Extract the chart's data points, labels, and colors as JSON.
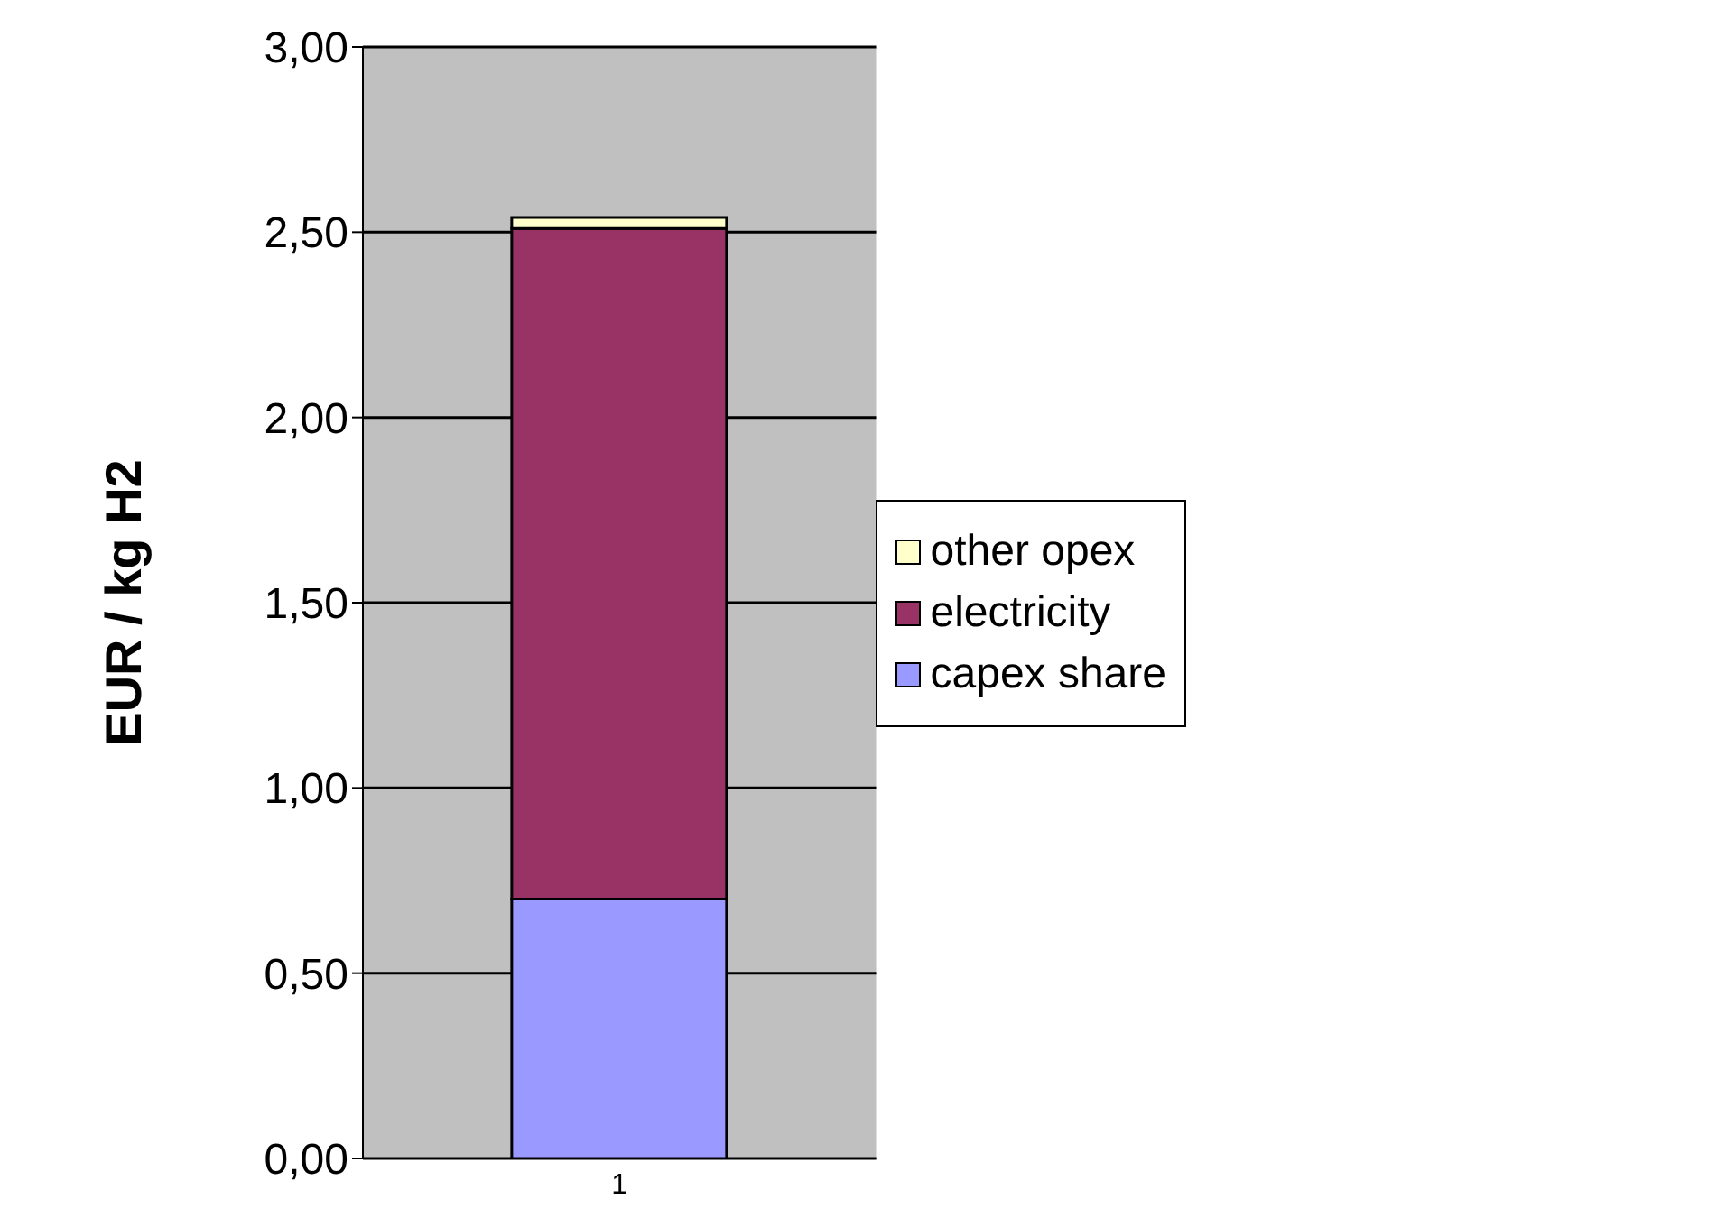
{
  "chart_data": {
    "type": "bar",
    "stacked": true,
    "ylabel": "EUR  / kg H2",
    "categories": [
      "1"
    ],
    "series": [
      {
        "name": "capex share",
        "color": "#9999ff",
        "values": [
          0.7
        ]
      },
      {
        "name": "electricity",
        "color": "#993366",
        "values": [
          1.81
        ]
      },
      {
        "name": "other opex",
        "color": "#ffffcc",
        "values": [
          0.03
        ]
      }
    ],
    "ylim": [
      0,
      3
    ],
    "yticks": [
      {
        "value": 0,
        "label": "0,00"
      },
      {
        "value": 0.5,
        "label": "0,50"
      },
      {
        "value": 1,
        "label": "1,00"
      },
      {
        "value": 1.5,
        "label": "1,50"
      },
      {
        "value": 2,
        "label": "2,00"
      },
      {
        "value": 2.5,
        "label": "2,50"
      },
      {
        "value": 3,
        "label": "3,00"
      }
    ],
    "grid": "y",
    "legend": "right"
  }
}
